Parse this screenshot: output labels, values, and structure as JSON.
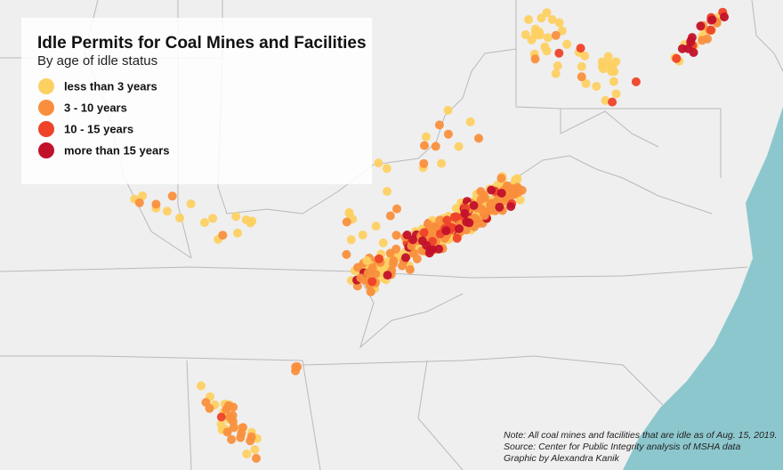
{
  "title": "Idle Permits for Coal Mines and Facilities",
  "subtitle": "By age of idle status",
  "legend": [
    {
      "label": "less than 3 years",
      "color": "#fdd062"
    },
    {
      "label": "3 - 10 years",
      "color": "#f98f3d"
    },
    {
      "label": "10 - 15 years",
      "color": "#ee4229"
    },
    {
      "label": "more than 15 years",
      "color": "#c2112b"
    }
  ],
  "notes": [
    "Note: All coal mines and facilities that are idle as of Aug. 15, 2019.",
    "Source: Center for Public Integrity analysis of MSHA data",
    "Graphic by Alexandra Kanik"
  ]
}
